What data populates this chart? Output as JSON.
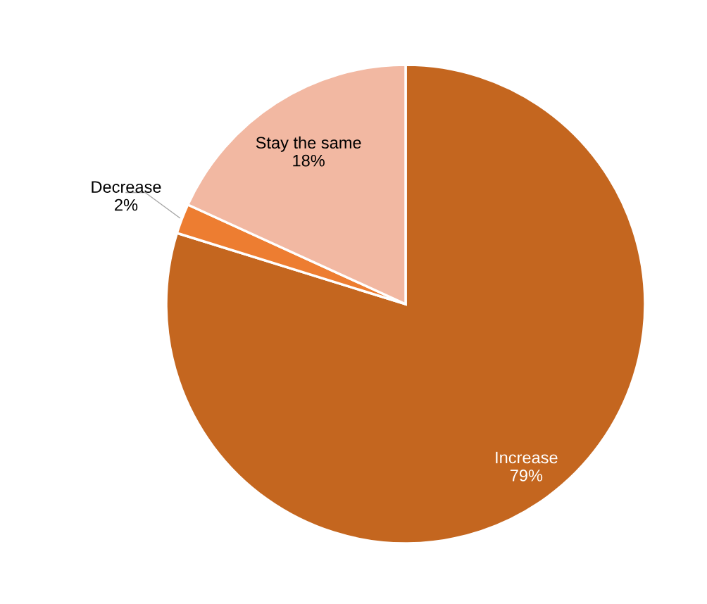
{
  "chart_data": {
    "type": "pie",
    "categories": [
      "Increase",
      "Decrease",
      "Stay the same"
    ],
    "values": [
      79,
      2,
      18
    ],
    "value_labels": [
      "79%",
      "2%",
      "18%"
    ],
    "colors": [
      "#c4661f",
      "#ed7d31",
      "#f2b8a2"
    ]
  }
}
